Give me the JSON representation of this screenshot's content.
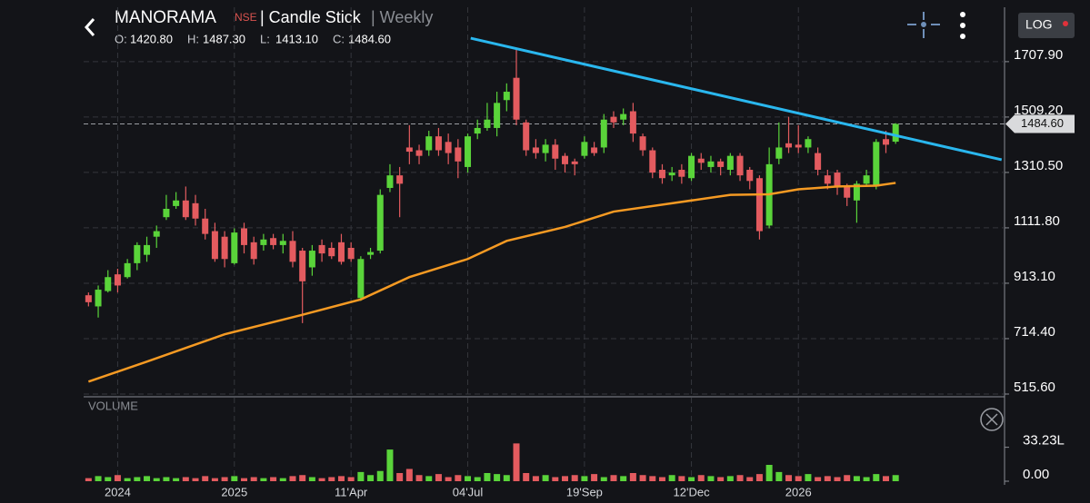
{
  "header": {
    "symbol": "MANORAMA",
    "exchange": "NSE",
    "chart_type": "| Candle Stick",
    "interval": "| Weekly",
    "ohlc": [
      {
        "key": "O:",
        "value": "1420.80"
      },
      {
        "key": "H:",
        "value": "1487.30"
      },
      {
        "key": "L:",
        "value": "1413.10"
      },
      {
        "key": "C:",
        "value": "1484.60"
      }
    ]
  },
  "controls": {
    "log": "LOG"
  },
  "chart_data": {
    "type": "candlestick",
    "up_color": "#5ad43a",
    "down_color": "#e35b5f",
    "candles": [
      {
        "o": 870,
        "h": 880,
        "l": 830,
        "c": 845
      },
      {
        "o": 830,
        "h": 905,
        "l": 790,
        "c": 890
      },
      {
        "o": 885,
        "h": 960,
        "l": 880,
        "c": 935
      },
      {
        "o": 945,
        "h": 965,
        "l": 880,
        "c": 905
      },
      {
        "o": 935,
        "h": 1000,
        "l": 930,
        "c": 985
      },
      {
        "o": 985,
        "h": 1060,
        "l": 960,
        "c": 1050
      },
      {
        "o": 1015,
        "h": 1080,
        "l": 990,
        "c": 1050
      },
      {
        "o": 1080,
        "h": 1120,
        "l": 1040,
        "c": 1100
      },
      {
        "o": 1150,
        "h": 1230,
        "l": 1140,
        "c": 1180
      },
      {
        "o": 1190,
        "h": 1240,
        "l": 1180,
        "c": 1210
      },
      {
        "o": 1210,
        "h": 1260,
        "l": 1140,
        "c": 1150
      },
      {
        "o": 1200,
        "h": 1230,
        "l": 1120,
        "c": 1145
      },
      {
        "o": 1145,
        "h": 1180,
        "l": 1070,
        "c": 1090
      },
      {
        "o": 1100,
        "h": 1130,
        "l": 990,
        "c": 1000
      },
      {
        "o": 1080,
        "h": 1100,
        "l": 970,
        "c": 1000
      },
      {
        "o": 985,
        "h": 1110,
        "l": 980,
        "c": 1095
      },
      {
        "o": 1110,
        "h": 1130,
        "l": 1020,
        "c": 1050
      },
      {
        "o": 1060,
        "h": 1080,
        "l": 980,
        "c": 1000
      },
      {
        "o": 1050,
        "h": 1090,
        "l": 1030,
        "c": 1070
      },
      {
        "o": 1075,
        "h": 1090,
        "l": 1035,
        "c": 1050
      },
      {
        "o": 1050,
        "h": 1090,
        "l": 1020,
        "c": 1065
      },
      {
        "o": 1065,
        "h": 1100,
        "l": 970,
        "c": 990
      },
      {
        "o": 1030,
        "h": 1040,
        "l": 770,
        "c": 920
      },
      {
        "o": 970,
        "h": 1050,
        "l": 940,
        "c": 1030
      },
      {
        "o": 1050,
        "h": 1070,
        "l": 990,
        "c": 1020
      },
      {
        "o": 1040,
        "h": 1060,
        "l": 1000,
        "c": 1010
      },
      {
        "o": 1060,
        "h": 1090,
        "l": 980,
        "c": 990
      },
      {
        "o": 1040,
        "h": 1060,
        "l": 990,
        "c": 1000
      },
      {
        "o": 860,
        "h": 1010,
        "l": 850,
        "c": 1000
      },
      {
        "o": 1015,
        "h": 1040,
        "l": 1000,
        "c": 1025
      },
      {
        "o": 1030,
        "h": 1250,
        "l": 1020,
        "c": 1230
      },
      {
        "o": 1255,
        "h": 1340,
        "l": 1240,
        "c": 1300
      },
      {
        "o": 1300,
        "h": 1330,
        "l": 1150,
        "c": 1270
      },
      {
        "o": 1400,
        "h": 1480,
        "l": 1340,
        "c": 1385
      },
      {
        "o": 1390,
        "h": 1410,
        "l": 1340,
        "c": 1370
      },
      {
        "o": 1390,
        "h": 1460,
        "l": 1370,
        "c": 1440
      },
      {
        "o": 1440,
        "h": 1470,
        "l": 1370,
        "c": 1390
      },
      {
        "o": 1420,
        "h": 1450,
        "l": 1340,
        "c": 1380
      },
      {
        "o": 1400,
        "h": 1430,
        "l": 1290,
        "c": 1350
      },
      {
        "o": 1330,
        "h": 1450,
        "l": 1310,
        "c": 1440
      },
      {
        "o": 1450,
        "h": 1500,
        "l": 1430,
        "c": 1470
      },
      {
        "o": 1470,
        "h": 1560,
        "l": 1460,
        "c": 1500
      },
      {
        "o": 1470,
        "h": 1600,
        "l": 1440,
        "c": 1560
      },
      {
        "o": 1570,
        "h": 1630,
        "l": 1530,
        "c": 1600
      },
      {
        "o": 1650,
        "h": 1750,
        "l": 1480,
        "c": 1500
      },
      {
        "o": 1490,
        "h": 1500,
        "l": 1370,
        "c": 1390
      },
      {
        "o": 1400,
        "h": 1430,
        "l": 1360,
        "c": 1380
      },
      {
        "o": 1380,
        "h": 1430,
        "l": 1350,
        "c": 1410
      },
      {
        "o": 1410,
        "h": 1430,
        "l": 1320,
        "c": 1360
      },
      {
        "o": 1370,
        "h": 1380,
        "l": 1310,
        "c": 1340
      },
      {
        "o": 1350,
        "h": 1360,
        "l": 1300,
        "c": 1340
      },
      {
        "o": 1370,
        "h": 1440,
        "l": 1360,
        "c": 1420
      },
      {
        "o": 1400,
        "h": 1420,
        "l": 1370,
        "c": 1380
      },
      {
        "o": 1400,
        "h": 1520,
        "l": 1380,
        "c": 1500
      },
      {
        "o": 1510,
        "h": 1530,
        "l": 1470,
        "c": 1490
      },
      {
        "o": 1500,
        "h": 1540,
        "l": 1480,
        "c": 1520
      },
      {
        "o": 1530,
        "h": 1560,
        "l": 1420,
        "c": 1450
      },
      {
        "o": 1440,
        "h": 1450,
        "l": 1370,
        "c": 1390
      },
      {
        "o": 1390,
        "h": 1400,
        "l": 1290,
        "c": 1310
      },
      {
        "o": 1320,
        "h": 1340,
        "l": 1270,
        "c": 1290
      },
      {
        "o": 1300,
        "h": 1330,
        "l": 1280,
        "c": 1310
      },
      {
        "o": 1320,
        "h": 1340,
        "l": 1270,
        "c": 1295
      },
      {
        "o": 1290,
        "h": 1380,
        "l": 1280,
        "c": 1370
      },
      {
        "o": 1360,
        "h": 1380,
        "l": 1320,
        "c": 1345
      },
      {
        "o": 1330,
        "h": 1370,
        "l": 1310,
        "c": 1350
      },
      {
        "o": 1350,
        "h": 1360,
        "l": 1300,
        "c": 1330
      },
      {
        "o": 1320,
        "h": 1380,
        "l": 1300,
        "c": 1370
      },
      {
        "o": 1370,
        "h": 1380,
        "l": 1280,
        "c": 1300
      },
      {
        "o": 1320,
        "h": 1330,
        "l": 1250,
        "c": 1280
      },
      {
        "o": 1290,
        "h": 1300,
        "l": 1070,
        "c": 1100
      },
      {
        "o": 1120,
        "h": 1400,
        "l": 1110,
        "c": 1340
      },
      {
        "o": 1360,
        "h": 1490,
        "l": 1340,
        "c": 1400
      },
      {
        "o": 1415,
        "h": 1510,
        "l": 1380,
        "c": 1400
      },
      {
        "o": 1410,
        "h": 1480,
        "l": 1380,
        "c": 1400
      },
      {
        "o": 1400,
        "h": 1440,
        "l": 1380,
        "c": 1430
      },
      {
        "o": 1380,
        "h": 1400,
        "l": 1300,
        "c": 1320
      },
      {
        "o": 1300,
        "h": 1320,
        "l": 1250,
        "c": 1270
      },
      {
        "o": 1310,
        "h": 1320,
        "l": 1230,
        "c": 1260
      },
      {
        "o": 1260,
        "h": 1270,
        "l": 1190,
        "c": 1220
      },
      {
        "o": 1210,
        "h": 1280,
        "l": 1130,
        "c": 1270
      },
      {
        "o": 1270,
        "h": 1320,
        "l": 1260,
        "c": 1300
      },
      {
        "o": 1260,
        "h": 1430,
        "l": 1250,
        "c": 1420
      },
      {
        "o": 1430,
        "h": 1460,
        "l": 1380,
        "c": 1410
      },
      {
        "o": 1420.8,
        "h": 1487.3,
        "l": 1413.1,
        "c": 1484.6
      }
    ],
    "xlim": [
      -0.5,
      94.2
    ],
    "xticks": [
      {
        "value": 3,
        "label": "2024"
      },
      {
        "value": 15,
        "label": "2025"
      },
      {
        "value": 27,
        "label": "11'Apr"
      },
      {
        "value": 39,
        "label": "04'Jul"
      },
      {
        "value": 51,
        "label": "19'Sep"
      },
      {
        "value": 62,
        "label": "12'Dec"
      },
      {
        "value": 73,
        "label": "2026"
      }
    ],
    "ylim": [
      515.6,
      1903
    ],
    "yticks": [
      {
        "value": 515.6,
        "label": "515.60"
      },
      {
        "value": 714.4,
        "label": "714.40"
      },
      {
        "value": 913.1,
        "label": "913.10"
      },
      {
        "value": 1111.8,
        "label": "1111.80"
      },
      {
        "value": 1310.5,
        "label": "1310.50"
      },
      {
        "value": 1509.2,
        "label": "1509.20"
      },
      {
        "value": 1707.9,
        "label": "1707.90"
      }
    ],
    "grid": true,
    "last_price": {
      "value": 1484.6,
      "label": "1484.60"
    },
    "moving_average": {
      "color": "#f59a23",
      "x": [
        0,
        6,
        14,
        22,
        28,
        33,
        39,
        43,
        49,
        54,
        60,
        66,
        70,
        73,
        77,
        81,
        83
      ],
      "values": [
        560,
        632,
        730,
        800,
        855,
        935,
        1000,
        1065,
        1115,
        1170,
        1200,
        1230,
        1232,
        1250,
        1260,
        1263,
        1273
      ]
    },
    "trendline": {
      "color": "#2ab7ee",
      "x": [
        39.3,
        93.9
      ],
      "values": [
        1792,
        1356
      ]
    },
    "volume": {
      "title": "VOLUME",
      "ylim": [
        0,
        80
      ],
      "yticks": [
        {
          "value": 0,
          "label": "0.00"
        },
        {
          "value": 33.23,
          "label": "33.23L"
        }
      ],
      "values": [
        3,
        5,
        4,
        6,
        3,
        4,
        5,
        3,
        4,
        3,
        4,
        3,
        5,
        3,
        4,
        5,
        3,
        4,
        3,
        4,
        3,
        5,
        6,
        4,
        3,
        4,
        5,
        4,
        9,
        6,
        10,
        31,
        8,
        12,
        6,
        5,
        7,
        4,
        6,
        5,
        4,
        8,
        7,
        6,
        37,
        8,
        5,
        6,
        4,
        5,
        6,
        5,
        7,
        4,
        6,
        5,
        8,
        6,
        5,
        4,
        6,
        5,
        4,
        6,
        5,
        4,
        5,
        6,
        4,
        7,
        16,
        9,
        6,
        5,
        7,
        4,
        5,
        4,
        6,
        5,
        4,
        7,
        5,
        6
      ]
    }
  }
}
